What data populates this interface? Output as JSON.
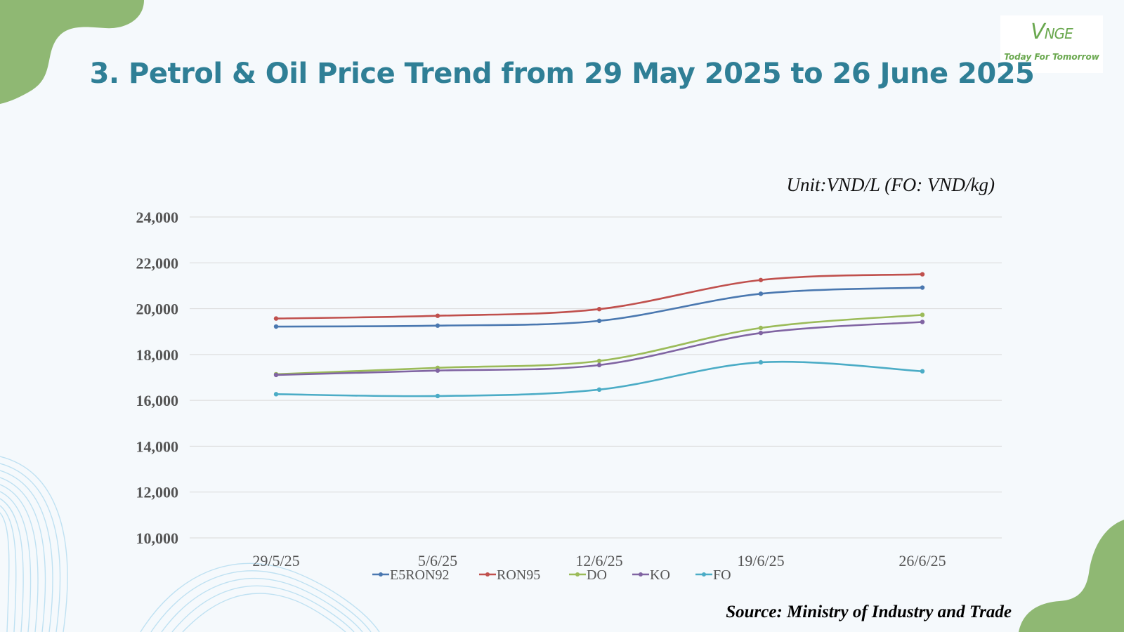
{
  "logo": {
    "mark_big": "V",
    "mark_rest": "NGE",
    "tagline": "Today For Tomorrow"
  },
  "title": "3. Petrol & Oil Price Trend from 29 May 2025 to 26 June 2025",
  "unit_label": "Unit:VND/L (FO: VND/kg)",
  "source": "Source: Ministry of Industry and Trade",
  "colors": {
    "title": "#2f7f96",
    "decor_green": "#8fb873",
    "decor_waves": "#bfe1f2"
  },
  "chart_data": {
    "type": "line",
    "x": [
      "29/5/25",
      "5/6/25",
      "12/6/25",
      "19/6/25",
      "26/6/25"
    ],
    "ylim": [
      10000,
      24000
    ],
    "yticks": [
      "10,000",
      "12,000",
      "14,000",
      "16,000",
      "18,000",
      "20,000",
      "22,000",
      "24,000"
    ],
    "ytick_values": [
      10000,
      12000,
      14000,
      16000,
      18000,
      20000,
      22000,
      24000
    ],
    "grid": true,
    "legend_position": "bottom",
    "series": [
      {
        "name": "E5RON92",
        "color": "#4a78b0",
        "values": [
          19220,
          19260,
          19470,
          20650,
          20920
        ]
      },
      {
        "name": "RON95",
        "color": "#c0504d",
        "values": [
          19570,
          19690,
          19980,
          21250,
          21500
        ]
      },
      {
        "name": "DO",
        "color": "#9bbb59",
        "values": [
          17140,
          17420,
          17720,
          19160,
          19730
        ]
      },
      {
        "name": "KO",
        "color": "#8064a2",
        "values": [
          17110,
          17300,
          17540,
          18940,
          19420
        ]
      },
      {
        "name": "FO",
        "color": "#4bacc6",
        "values": [
          16270,
          16190,
          16470,
          17660,
          17270
        ]
      }
    ]
  }
}
